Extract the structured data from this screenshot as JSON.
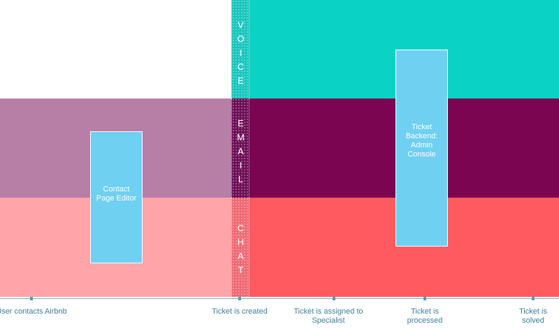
{
  "channels": {
    "voice": "VOICE",
    "email": "EMAIL",
    "chat": "CHAT"
  },
  "tools": {
    "contact_page_editor": "Contact Page Editor",
    "admin_console": "Ticket Backend: Admin Console"
  },
  "timeline": {
    "milestones": [
      {
        "label": "User contacts Airbnb"
      },
      {
        "label": "Ticket is created"
      },
      {
        "label": "Ticket is assigned to Specialist"
      },
      {
        "label": "Ticket is processed"
      },
      {
        "label": "Ticket is solved"
      }
    ]
  },
  "colors": {
    "voice": "#0ad3c5",
    "email": "#7b0551",
    "chat": "#ff5a60",
    "tool": "#6fd0f1",
    "timeline": "#3a7f9a"
  }
}
